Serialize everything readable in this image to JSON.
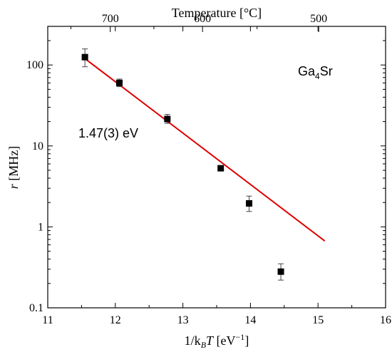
{
  "chart_data": {
    "type": "scatter",
    "x_axis": {
      "label_prefix": "1/k",
      "label_subscript": "B",
      "label_var": "T",
      "label_units": " [eV",
      "label_units_sup": "−1",
      "label_units_end": "]",
      "range": [
        11,
        16
      ],
      "ticks": [
        "11",
        "12",
        "13",
        "14",
        "15",
        "16"
      ]
    },
    "top_axis": {
      "label": "Temperature [°C]",
      "ticks": [
        {
          "label": "700",
          "celsius": 700
        },
        {
          "label": "600",
          "celsius": 600
        },
        {
          "label": "500",
          "celsius": 500
        }
      ]
    },
    "y_axis": {
      "label_var": "r",
      "label_units": " [MHz]",
      "scale": "log",
      "range": [
        0.1,
        300
      ],
      "ticks": [
        "0.1",
        "1",
        "10",
        "100"
      ]
    },
    "series": [
      {
        "name": "",
        "points": [
          {
            "x": 11.55,
            "y": 125,
            "err": [
              95,
              158
            ]
          },
          {
            "x": 12.06,
            "y": 60,
            "err": [
              54,
              67
            ]
          },
          {
            "x": 12.77,
            "y": 21.5,
            "err": [
              19,
              24.5
            ]
          },
          {
            "x": 13.56,
            "y": 5.3,
            "err": null
          },
          {
            "x": 13.98,
            "y": 1.95,
            "err": [
              1.55,
              2.4
            ]
          },
          {
            "x": 14.45,
            "y": 0.28,
            "err": [
              0.22,
              0.35
            ]
          }
        ],
        "color": "#000000"
      }
    ],
    "fit_line": {
      "x": [
        11.55,
        15.1
      ],
      "y": [
        120,
        0.67
      ],
      "color": "#e00000"
    },
    "annotations": {
      "compound_main": "Ga",
      "compound_sub": "4",
      "compound_end": "Sr",
      "activation_energy": "1.47(3) eV"
    },
    "grid": false
  }
}
